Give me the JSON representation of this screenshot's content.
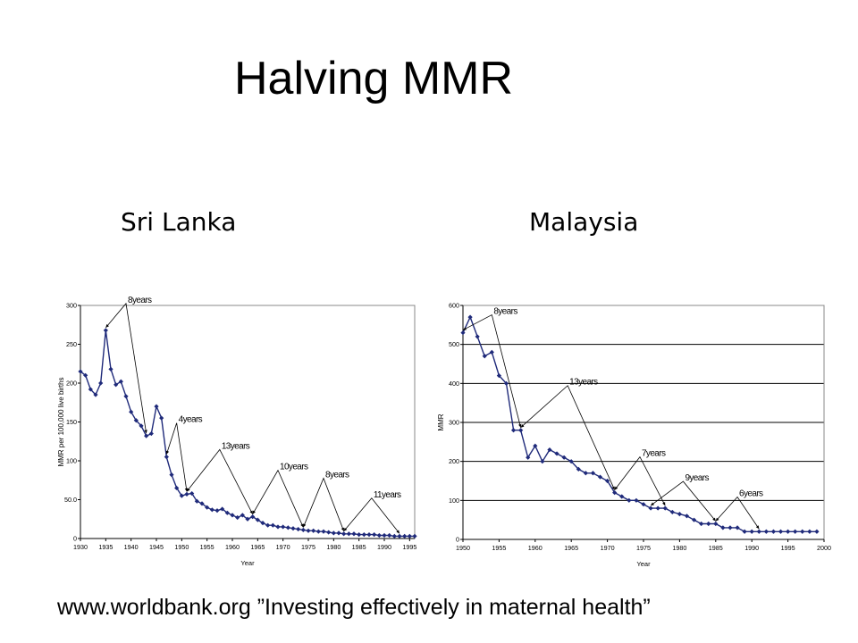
{
  "slide": {
    "title": "Halving MMR",
    "footer": "www.worldbank.org ”Investing effectively in maternal health”"
  },
  "colors": {
    "series": "#1f2a7a",
    "frame": "#000000",
    "grid": "#000000",
    "background": "#ffffff"
  },
  "chart_data": [
    {
      "type": "line",
      "title": "Sri Lanka",
      "xlabel": "Year",
      "ylabel": "MMR per 100,000 live births",
      "xlim": [
        1930,
        1996
      ],
      "ylim": [
        0,
        300
      ],
      "yticks": [
        0,
        50,
        100,
        150,
        200,
        250,
        300
      ],
      "ytick_labels": [
        "0",
        "50.0",
        "100",
        "150",
        "200",
        "250",
        "300"
      ],
      "xticks": [
        1930,
        1935,
        1940,
        1945,
        1950,
        1955,
        1960,
        1965,
        1970,
        1975,
        1980,
        1985,
        1990,
        1995
      ],
      "xtick_labels": [
        "1930",
        "1935",
        "1940",
        "1945",
        "1950",
        "1955",
        "1960",
        "1965",
        "1970",
        "1975",
        "1980",
        "1985",
        "1990",
        "1995"
      ],
      "grid": false,
      "series": [
        {
          "x": [
            1930,
            1931,
            1932,
            1933,
            1934,
            1935,
            1936,
            1937,
            1938,
            1939,
            1940,
            1941,
            1942,
            1943,
            1944,
            1945,
            1946,
            1947,
            1948,
            1949,
            1950,
            1951,
            1952,
            1953,
            1954,
            1955,
            1956,
            1957,
            1958,
            1959,
            1960,
            1961,
            1962,
            1963,
            1964,
            1965,
            1966,
            1967,
            1968,
            1969,
            1970,
            1971,
            1972,
            1973,
            1974,
            1975,
            1976,
            1977,
            1978,
            1979,
            1980,
            1981,
            1982,
            1983,
            1984,
            1985,
            1986,
            1987,
            1988,
            1989,
            1990,
            1991,
            1992,
            1993,
            1994,
            1995,
            1996
          ],
          "values": [
            215,
            210,
            192,
            185,
            200,
            268,
            218,
            198,
            202,
            183,
            163,
            152,
            145,
            132,
            135,
            170,
            155,
            105,
            82,
            65,
            55,
            57,
            58,
            48,
            45,
            40,
            37,
            36,
            38,
            33,
            30,
            27,
            30,
            25,
            28,
            24,
            20,
            17,
            17,
            15,
            15,
            14,
            13,
            12,
            11,
            10,
            10,
            9,
            9,
            8,
            7,
            7,
            6,
            6,
            6,
            5,
            5,
            5,
            5,
            4,
            4,
            4,
            3,
            3,
            3,
            3,
            3
          ]
        }
      ],
      "annotations": [
        {
          "text": "8years",
          "from": 1935,
          "to": 1943
        },
        {
          "text": "4years",
          "from": 1947,
          "to": 1951
        },
        {
          "text": "13years",
          "from": 1951,
          "to": 1964
        },
        {
          "text": "10years",
          "from": 1964,
          "to": 1974
        },
        {
          "text": "8years",
          "from": 1974,
          "to": 1982
        },
        {
          "text": "11years",
          "from": 1982,
          "to": 1993
        }
      ]
    },
    {
      "type": "line",
      "title": "Malaysia",
      "xlabel": "Year",
      "ylabel": "MMR",
      "xlim": [
        1950,
        2000
      ],
      "ylim": [
        0,
        600
      ],
      "yticks": [
        0,
        100,
        200,
        300,
        400,
        500,
        600
      ],
      "ytick_labels": [
        "0",
        "100",
        "200",
        "300",
        "400",
        "500",
        "600"
      ],
      "xticks": [
        1950,
        1955,
        1960,
        1965,
        1970,
        1975,
        1980,
        1985,
        1990,
        1995,
        2000
      ],
      "xtick_labels": [
        "1950",
        "1955",
        "1960",
        "1965",
        "1970",
        "1975",
        "1980",
        "1985",
        "1990",
        "1995",
        "2000"
      ],
      "grid": true,
      "series": [
        {
          "x": [
            1950,
            1951,
            1952,
            1953,
            1954,
            1955,
            1956,
            1957,
            1958,
            1959,
            1960,
            1961,
            1962,
            1963,
            1964,
            1965,
            1966,
            1967,
            1968,
            1969,
            1970,
            1971,
            1972,
            1973,
            1974,
            1975,
            1976,
            1977,
            1978,
            1979,
            1980,
            1981,
            1982,
            1983,
            1984,
            1985,
            1986,
            1987,
            1988,
            1989,
            1990,
            1991,
            1992,
            1993,
            1994,
            1995,
            1996,
            1997,
            1998,
            1999
          ],
          "values": [
            530,
            570,
            520,
            470,
            480,
            420,
            400,
            280,
            280,
            210,
            240,
            200,
            230,
            220,
            210,
            200,
            180,
            170,
            170,
            160,
            150,
            120,
            110,
            100,
            100,
            90,
            80,
            80,
            80,
            70,
            65,
            60,
            50,
            40,
            40,
            40,
            30,
            30,
            30,
            20,
            20,
            20,
            20,
            20,
            20,
            20,
            20,
            20,
            20,
            20
          ]
        }
      ],
      "annotations": [
        {
          "text": "8years",
          "from": 1950,
          "to": 1958
        },
        {
          "text": "13years",
          "from": 1958,
          "to": 1971
        },
        {
          "text": "7years",
          "from": 1971,
          "to": 1978
        },
        {
          "text": "9years",
          "from": 1976,
          "to": 1985
        },
        {
          "text": "6years",
          "from": 1985,
          "to": 1991
        }
      ]
    }
  ]
}
